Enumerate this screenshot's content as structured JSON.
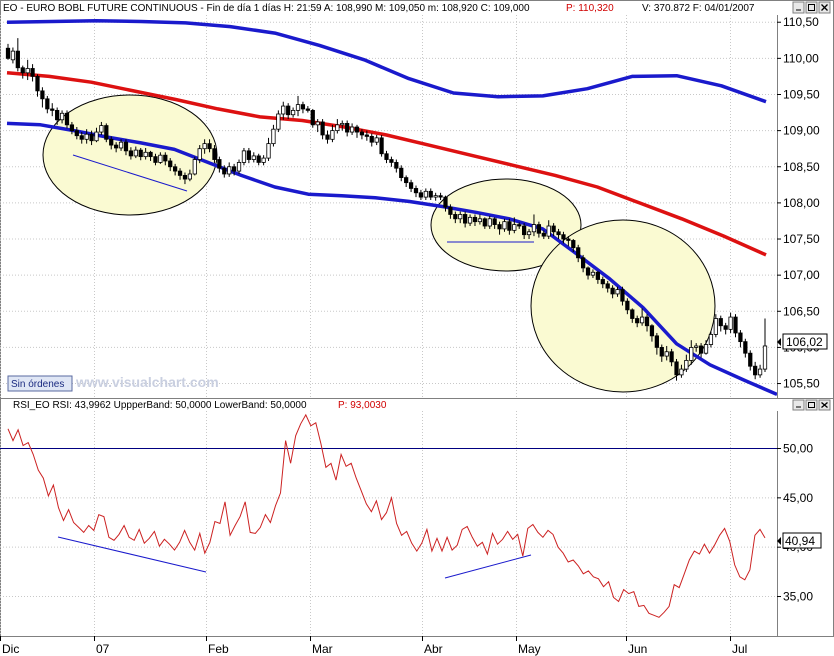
{
  "header": {
    "main": "EO - EURO BOBL FUTURE CONTINUOUS - Fin de día 1 días H: 21:59  A: 108,990  M: 109,050  m: 108,920  C: 109,000",
    "p_label": "P: 110,320",
    "tail": "V: 370.872  F: 04/01/2007"
  },
  "rsi_header": {
    "main": "RSI_EO  RSI: 43,9962  UppperBand: 50,0000  LowerBand: 50,0000",
    "p_label": "P: 93,0030"
  },
  "badge": "Sin órdenes",
  "watermark": "www.visualchart.com",
  "last_price_label": "106,02",
  "last_rsi_label": "40,94",
  "colors": {
    "bull": "#ffffff",
    "bear": "#000000",
    "band": "#1a1acc",
    "mid": "#dd1111",
    "rsi": "#cc2222",
    "ellipse": "#fafad2"
  },
  "chart_data": [
    {
      "type": "candlestick",
      "title": "EURO BOBL FUTURE CONTINUOUS",
      "y_ticks": [
        "110,50",
        "110,00",
        "109,50",
        "109,00",
        "108,50",
        "108,00",
        "107,50",
        "107,00",
        "106,50",
        "106,00",
        "105,50"
      ],
      "ylim": [
        105.3,
        110.6
      ],
      "x_labels": [
        "Dic",
        "07",
        "Feb",
        "Mar",
        "Abr",
        "May",
        "Jun",
        "Jul"
      ],
      "candles": [
        [
          110.14,
          110.0,
          109.98,
          110.2
        ],
        [
          109.98,
          110.1,
          109.93,
          110.15
        ],
        [
          110.1,
          109.87,
          109.82,
          110.28
        ],
        [
          109.87,
          109.8,
          109.72,
          109.9
        ],
        [
          109.8,
          109.86,
          109.7,
          109.98
        ],
        [
          109.86,
          109.75,
          109.68,
          109.92
        ],
        [
          109.75,
          109.55,
          109.47,
          109.78
        ],
        [
          109.55,
          109.44,
          109.32,
          109.6
        ],
        [
          109.44,
          109.3,
          109.24,
          109.48
        ],
        [
          109.3,
          109.28,
          109.2,
          109.38
        ],
        [
          109.28,
          109.15,
          109.08,
          109.32
        ],
        [
          109.15,
          109.24,
          109.1,
          109.28
        ],
        [
          109.24,
          109.08,
          109.03,
          109.28
        ],
        [
          109.08,
          109.0,
          108.95,
          109.12
        ],
        [
          109.0,
          108.93,
          108.88,
          109.05
        ],
        [
          108.93,
          108.88,
          108.82,
          108.98
        ],
        [
          108.88,
          108.95,
          108.82,
          109.02
        ],
        [
          108.95,
          108.86,
          108.8,
          109.0
        ],
        [
          108.86,
          108.98,
          108.84,
          109.04
        ],
        [
          108.98,
          109.07,
          108.94,
          109.12
        ],
        [
          109.07,
          108.88,
          108.84,
          109.1
        ],
        [
          108.88,
          108.8,
          108.74,
          108.92
        ],
        [
          108.8,
          108.76,
          108.7,
          108.84
        ],
        [
          108.76,
          108.84,
          108.72,
          108.88
        ],
        [
          108.84,
          108.72,
          108.66,
          108.88
        ],
        [
          108.72,
          108.65,
          108.6,
          108.77
        ],
        [
          108.65,
          108.73,
          108.62,
          108.78
        ],
        [
          108.73,
          108.64,
          108.59,
          108.76
        ],
        [
          108.64,
          108.7,
          108.6,
          108.76
        ],
        [
          108.7,
          108.64,
          108.58,
          108.72
        ],
        [
          108.64,
          108.56,
          108.52,
          108.68
        ],
        [
          108.56,
          108.66,
          108.54,
          108.7
        ],
        [
          108.66,
          108.58,
          108.52,
          108.7
        ],
        [
          108.58,
          108.5,
          108.44,
          108.62
        ],
        [
          108.5,
          108.44,
          108.38,
          108.54
        ],
        [
          108.44,
          108.38,
          108.32,
          108.48
        ],
        [
          108.38,
          108.33,
          108.26,
          108.42
        ],
        [
          108.33,
          108.4,
          108.3,
          108.46
        ],
        [
          108.4,
          108.6,
          108.38,
          108.64
        ],
        [
          108.6,
          108.75,
          108.55,
          108.8
        ],
        [
          108.75,
          108.82,
          108.68,
          108.88
        ],
        [
          108.82,
          108.75,
          108.7,
          108.88
        ],
        [
          108.75,
          108.6,
          108.55,
          108.8
        ],
        [
          108.6,
          108.48,
          108.42,
          108.64
        ],
        [
          108.48,
          108.4,
          108.35,
          108.52
        ],
        [
          108.4,
          108.5,
          108.36,
          108.56
        ],
        [
          108.5,
          108.44,
          108.38,
          108.54
        ],
        [
          108.44,
          108.56,
          108.4,
          108.6
        ],
        [
          108.56,
          108.72,
          108.52,
          108.76
        ],
        [
          108.72,
          108.6,
          108.55,
          108.76
        ],
        [
          108.6,
          108.65,
          108.56,
          108.7
        ],
        [
          108.65,
          108.56,
          108.52,
          108.68
        ],
        [
          108.56,
          108.62,
          108.52,
          108.66
        ],
        [
          108.62,
          108.82,
          108.58,
          108.9
        ],
        [
          108.82,
          109.02,
          108.78,
          109.08
        ],
        [
          109.02,
          109.23,
          108.98,
          109.28
        ],
        [
          109.23,
          109.34,
          109.15,
          109.4
        ],
        [
          109.34,
          109.22,
          109.16,
          109.38
        ],
        [
          109.22,
          109.28,
          109.18,
          109.32
        ],
        [
          109.28,
          109.36,
          109.2,
          109.48
        ],
        [
          109.36,
          109.3,
          109.24,
          109.4
        ],
        [
          109.3,
          109.28,
          109.25,
          109.34
        ],
        [
          109.28,
          109.08,
          109.04,
          109.3
        ],
        [
          109.08,
          109.12,
          108.98,
          109.16
        ],
        [
          109.12,
          108.94,
          108.88,
          109.16
        ],
        [
          108.94,
          108.88,
          108.82,
          109.0
        ],
        [
          108.88,
          109.0,
          108.84,
          109.08
        ],
        [
          109.0,
          109.08,
          108.96,
          109.16
        ],
        [
          109.08,
          109.1,
          109.0,
          109.14
        ],
        [
          109.1,
          108.98,
          108.92,
          109.14
        ],
        [
          108.98,
          109.05,
          108.94,
          109.1
        ],
        [
          109.05,
          108.98,
          108.9,
          109.08
        ],
        [
          108.98,
          108.94,
          108.88,
          109.02
        ],
        [
          108.94,
          108.92,
          108.86,
          109.0
        ],
        [
          108.92,
          108.84,
          108.78,
          108.96
        ],
        [
          108.84,
          108.9,
          108.8,
          108.94
        ],
        [
          108.9,
          108.68,
          108.64,
          108.94
        ],
        [
          108.68,
          108.6,
          108.55,
          108.72
        ],
        [
          108.6,
          108.56,
          108.5,
          108.64
        ],
        [
          108.56,
          108.48,
          108.42,
          108.6
        ],
        [
          108.48,
          108.35,
          108.3,
          108.52
        ],
        [
          108.35,
          108.28,
          108.22,
          108.38
        ],
        [
          108.28,
          108.2,
          108.15,
          108.32
        ],
        [
          108.2,
          108.14,
          108.08,
          108.24
        ],
        [
          108.14,
          108.08,
          108.04,
          108.18
        ],
        [
          108.08,
          108.16,
          108.04,
          108.2
        ],
        [
          108.16,
          108.08,
          108.04,
          108.2
        ],
        [
          108.08,
          108.1,
          108.03,
          108.14
        ],
        [
          108.1,
          108.08,
          108.04,
          108.14
        ],
        [
          108.08,
          107.94,
          107.88,
          108.1
        ],
        [
          107.94,
          107.84,
          107.78,
          107.98
        ],
        [
          107.84,
          107.78,
          107.72,
          107.88
        ],
        [
          107.78,
          107.84,
          107.72,
          107.88
        ],
        [
          107.84,
          107.72,
          107.66,
          107.88
        ],
        [
          107.72,
          107.8,
          107.68,
          107.84
        ],
        [
          107.8,
          107.74,
          107.68,
          107.84
        ],
        [
          107.74,
          107.78,
          107.7,
          107.84
        ],
        [
          107.78,
          107.68,
          107.64,
          107.8
        ],
        [
          107.68,
          107.78,
          107.64,
          107.82
        ],
        [
          107.78,
          107.7,
          107.64,
          107.8
        ],
        [
          107.7,
          107.64,
          107.56,
          107.74
        ],
        [
          107.64,
          107.74,
          107.6,
          107.78
        ],
        [
          107.74,
          107.62,
          107.56,
          107.78
        ],
        [
          107.62,
          107.7,
          107.58,
          107.8
        ],
        [
          107.7,
          107.68,
          107.64,
          107.73
        ],
        [
          107.68,
          107.56,
          107.5,
          107.72
        ],
        [
          107.56,
          107.6,
          107.5,
          107.64
        ],
        [
          107.6,
          107.7,
          107.54,
          107.84
        ],
        [
          107.7,
          107.58,
          107.52,
          107.74
        ],
        [
          107.58,
          107.54,
          107.5,
          107.62
        ],
        [
          107.54,
          107.68,
          107.5,
          107.76
        ],
        [
          107.68,
          107.6,
          107.54,
          107.72
        ],
        [
          107.6,
          107.56,
          107.5,
          107.64
        ],
        [
          107.56,
          107.5,
          107.44,
          107.6
        ],
        [
          107.5,
          107.48,
          107.4,
          107.54
        ],
        [
          107.48,
          107.38,
          107.32,
          107.5
        ],
        [
          107.38,
          107.24,
          107.18,
          107.42
        ],
        [
          107.24,
          107.1,
          107.04,
          107.28
        ],
        [
          107.1,
          107.0,
          106.94,
          107.12
        ],
        [
          107.0,
          107.04,
          106.96,
          107.08
        ],
        [
          107.04,
          106.94,
          106.88,
          107.06
        ],
        [
          106.94,
          106.88,
          106.82,
          106.98
        ],
        [
          106.88,
          106.82,
          106.76,
          106.92
        ],
        [
          106.82,
          106.74,
          106.68,
          106.86
        ],
        [
          106.74,
          106.8,
          106.7,
          106.84
        ],
        [
          106.8,
          106.64,
          106.58,
          106.84
        ],
        [
          106.64,
          106.52,
          106.46,
          106.68
        ],
        [
          106.52,
          106.4,
          106.34,
          106.54
        ],
        [
          106.4,
          106.34,
          106.28,
          106.44
        ],
        [
          106.34,
          106.42,
          106.3,
          106.54
        ],
        [
          106.42,
          106.3,
          106.22,
          106.46
        ],
        [
          106.3,
          106.16,
          106.08,
          106.32
        ],
        [
          106.16,
          106.0,
          105.9,
          106.2
        ],
        [
          106.0,
          105.88,
          105.8,
          106.04
        ],
        [
          105.88,
          105.94,
          105.82,
          106.02
        ],
        [
          105.94,
          105.8,
          105.74,
          105.98
        ],
        [
          105.8,
          105.62,
          105.54,
          105.84
        ],
        [
          105.62,
          105.7,
          105.58,
          105.76
        ],
        [
          105.7,
          105.82,
          105.66,
          105.9
        ],
        [
          105.82,
          106.0,
          105.76,
          106.1
        ],
        [
          106.0,
          106.02,
          105.94,
          106.06
        ],
        [
          106.02,
          105.92,
          105.86,
          106.06
        ],
        [
          105.92,
          106.04,
          105.9,
          106.1
        ],
        [
          106.04,
          106.18,
          106.0,
          106.22
        ],
        [
          106.18,
          106.4,
          106.14,
          106.46
        ],
        [
          106.4,
          106.3,
          106.22,
          106.44
        ],
        [
          106.3,
          106.25,
          106.18,
          106.34
        ],
        [
          106.25,
          106.42,
          106.2,
          106.48
        ],
        [
          106.42,
          106.2,
          106.14,
          106.46
        ],
        [
          106.2,
          106.08,
          106.0,
          106.24
        ],
        [
          106.08,
          105.92,
          105.86,
          106.12
        ],
        [
          105.92,
          105.74,
          105.68,
          105.96
        ],
        [
          105.74,
          105.62,
          105.56,
          105.8
        ],
        [
          105.62,
          105.7,
          105.58,
          105.76
        ],
        [
          105.7,
          106.02,
          105.66,
          106.4
        ]
      ],
      "series": [
        {
          "y": [
            110.5,
            110.51,
            110.52,
            110.51,
            110.49,
            110.44,
            110.35,
            110.18,
            109.98,
            109.72,
            109.52,
            109.47,
            109.48,
            109.58,
            109.75,
            109.76,
            109.62,
            109.4
          ]
        },
        {
          "y": [
            109.8,
            109.75,
            109.67,
            109.55,
            109.43,
            109.3,
            109.19,
            109.14,
            109.05,
            108.94,
            108.8,
            108.66,
            108.52,
            108.38,
            108.22,
            108.0,
            107.78,
            107.54,
            107.28
          ]
        },
        {
          "y": [
            109.1,
            109.08,
            109.0,
            108.91,
            108.83,
            108.74,
            108.56,
            108.38,
            108.22,
            108.12,
            108.1,
            108.07,
            108.02,
            107.95,
            107.87,
            107.78,
            107.64,
            107.3,
            106.95,
            106.55,
            106.05,
            105.76,
            105.55,
            105.35
          ]
        }
      ]
    },
    {
      "type": "line",
      "title": "RSI_EO",
      "y_ticks": [
        "50,00",
        "45,00",
        "40,00",
        "35,00"
      ],
      "ylim": [
        31.0,
        53.8
      ],
      "series": [
        {
          "name": "RSI",
          "values": [
            52.0,
            50.8,
            51.9,
            50.3,
            50.6,
            49.4,
            47.8,
            47.0,
            45.2,
            46.3,
            44.0,
            42.7,
            43.8,
            42.5,
            42.0,
            41.5,
            42.2,
            41.7,
            43.3,
            43.1,
            41.0,
            40.7,
            41.3,
            42.2,
            41.0,
            40.7,
            41.8,
            40.4,
            40.9,
            41.6,
            40.1,
            40.8,
            40.3,
            39.7,
            40.5,
            41.7,
            40.5,
            39.7,
            41.4,
            39.4,
            40.5,
            42.6,
            42.4,
            44.6,
            41.2,
            42.2,
            43.1,
            44.6,
            41.5,
            41.4,
            42.0,
            43.3,
            42.5,
            44.2,
            45.5,
            50.8,
            48.5,
            51.3,
            52.5,
            53.4,
            52.3,
            52.6,
            50.5,
            48.1,
            48.5,
            46.8,
            49.4,
            48.2,
            48.5,
            47.0,
            45.7,
            44.4,
            43.6,
            44.7,
            42.8,
            43.5,
            45.0,
            42.4,
            41.2,
            41.6,
            40.4,
            39.6,
            40.4,
            41.8,
            39.6,
            40.9,
            39.6,
            41.0,
            39.7,
            40.2,
            41.8,
            42.1,
            41.0,
            40.1,
            40.5,
            39.3,
            41.4,
            40.3,
            40.8,
            41.6,
            40.8,
            41.3,
            39.1,
            41.9,
            42.3,
            41.5,
            41.0,
            41.7,
            41.3,
            40.0,
            39.4,
            38.5,
            38.7,
            38.1,
            37.3,
            37.6,
            37.0,
            36.8,
            36.0,
            36.5,
            34.9,
            34.5,
            35.7,
            35.3,
            35.5,
            34.0,
            34.1,
            33.3,
            33.1,
            32.9,
            33.4,
            34.0,
            36.2,
            35.9,
            37.3,
            38.7,
            39.6,
            39.3,
            40.3,
            39.4,
            40.2,
            41.2,
            41.9,
            40.6,
            38.2,
            37.0,
            36.7,
            37.7,
            41.2,
            41.8,
            40.94
          ]
        }
      ],
      "bands": {
        "upper": 50.0,
        "lower": 50.0
      }
    }
  ]
}
